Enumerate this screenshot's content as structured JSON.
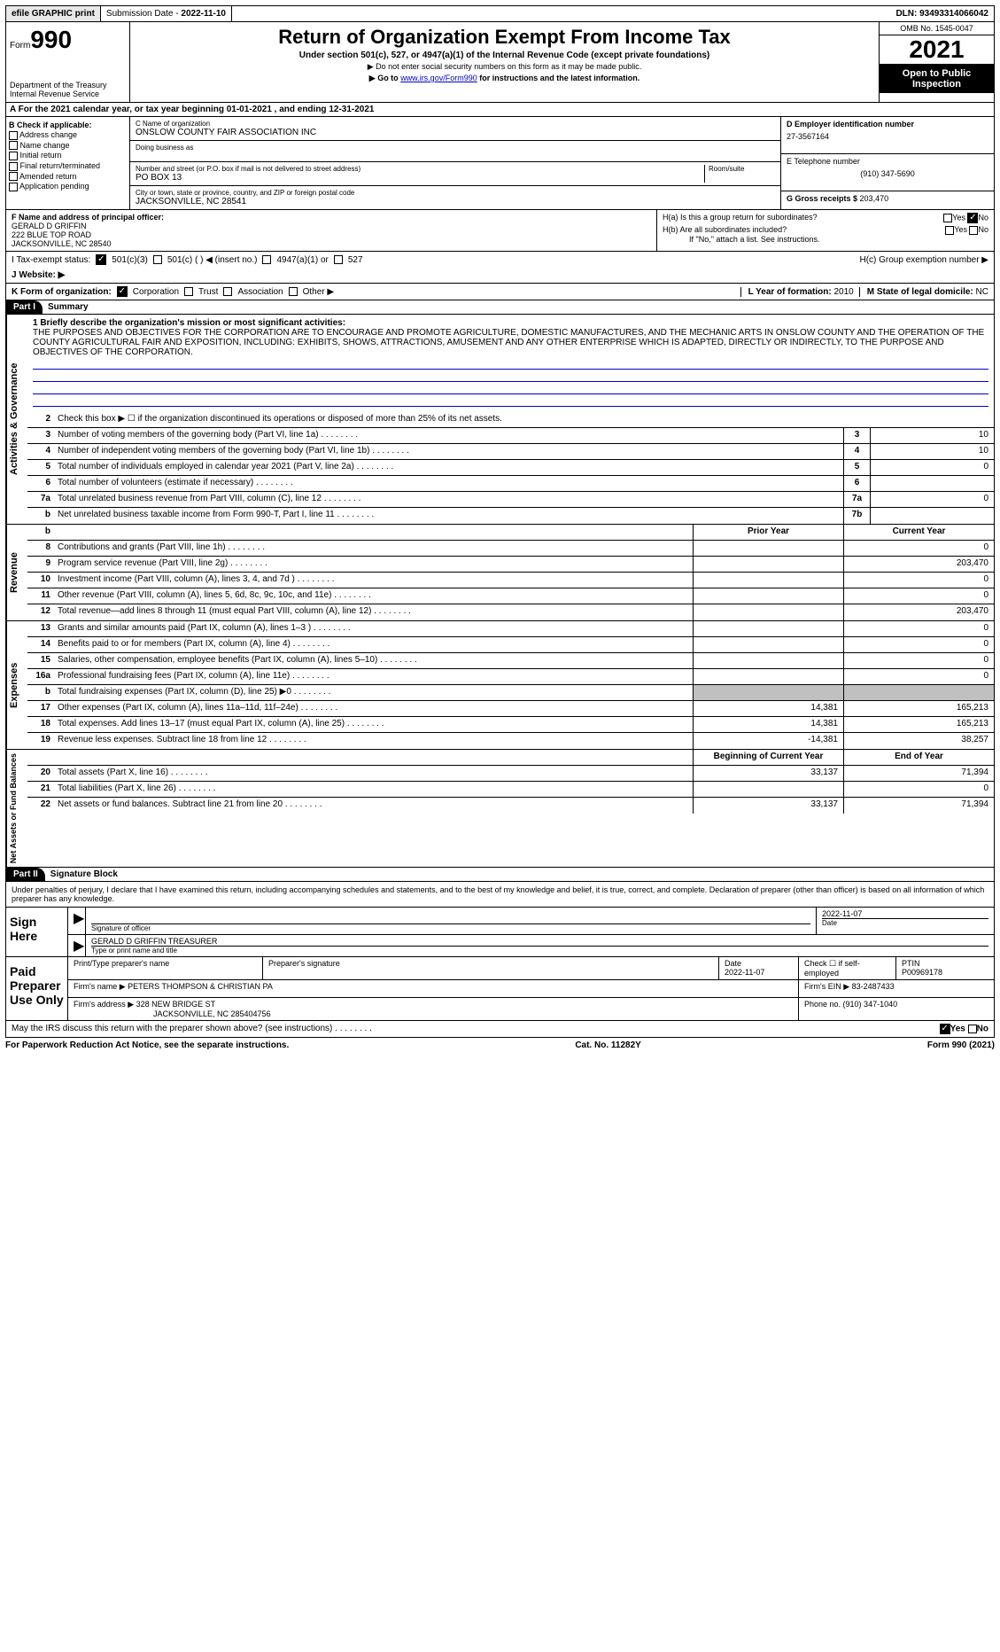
{
  "topbar": {
    "efile": "efile GRAPHIC print",
    "subdate_label": "Submission Date - ",
    "subdate": "2022-11-10",
    "dln_label": "DLN: ",
    "dln": "93493314066042"
  },
  "header": {
    "form_label": "Form",
    "form_num": "990",
    "dept": "Department of the Treasury",
    "irs": "Internal Revenue Service",
    "title": "Return of Organization Exempt From Income Tax",
    "sub": "Under section 501(c), 527, or 4947(a)(1) of the Internal Revenue Code (except private foundations)",
    "note1": "▶ Do not enter social security numbers on this form as it may be made public.",
    "note2_pre": "▶ Go to ",
    "note2_link": "www.irs.gov/Form990",
    "note2_post": " for instructions and the latest information.",
    "omb": "OMB No. 1545-0047",
    "year": "2021",
    "open": "Open to Public Inspection"
  },
  "section_a": "A For the 2021 calendar year, or tax year beginning 01-01-2021     , and ending 12-31-2021",
  "col_b": {
    "title": "B Check if applicable:",
    "items": [
      "Address change",
      "Name change",
      "Initial return",
      "Final return/terminated",
      "Amended return",
      "Application pending"
    ]
  },
  "col_c": {
    "name_label": "C Name of organization",
    "name": "ONSLOW COUNTY FAIR ASSOCIATION INC",
    "dba_label": "Doing business as",
    "addr_label": "Number and street (or P.O. box if mail is not delivered to street address)",
    "room_label": "Room/suite",
    "addr": "PO BOX 13",
    "city_label": "City or town, state or province, country, and ZIP or foreign postal code",
    "city": "JACKSONVILLE, NC  28541"
  },
  "col_d": {
    "ein_label": "D Employer identification number",
    "ein": "27-3567164",
    "phone_label": "E Telephone number",
    "phone": "(910) 347-5690",
    "gross_label": "G Gross receipts $ ",
    "gross": "203,470"
  },
  "section_f": {
    "label": "F  Name and address of principal officer:",
    "name": "GERALD D GRIFFIN",
    "addr1": "222 BLUE TOP ROAD",
    "addr2": "JACKSONVILLE, NC  28540"
  },
  "section_h": {
    "ha": "H(a)  Is this a group return for subordinates?",
    "hb": "H(b)  Are all subordinates included?",
    "hb_note": "If \"No,\" attach a list. See instructions.",
    "hc": "H(c)  Group exemption number ▶",
    "yes": "Yes",
    "no": "No"
  },
  "section_i": {
    "label": "I   Tax-exempt status:",
    "opt1": "501(c)(3)",
    "opt2": "501(c) (   ) ◀ (insert no.)",
    "opt3": "4947(a)(1) or",
    "opt4": "527"
  },
  "section_j": {
    "label": "J   Website: ▶"
  },
  "section_k": {
    "label": "K Form of organization:",
    "opts": [
      "Corporation",
      "Trust",
      "Association",
      "Other ▶"
    ]
  },
  "section_l": {
    "label": "L Year of formation: ",
    "val": "2010"
  },
  "section_m": {
    "label": "M State of legal domicile: ",
    "val": "NC"
  },
  "part1": {
    "header": "Part I",
    "title": "Summary",
    "line1_label": "1  Briefly describe the organization's mission or most significant activities:",
    "mission": "THE PURPOSES AND OBJECTIVES FOR THE CORPORATION ARE TO ENCOURAGE AND PROMOTE AGRICULTURE, DOMESTIC MANUFACTURES, AND THE MECHANIC ARTS IN ONSLOW COUNTY AND THE OPERATION OF THE COUNTY AGRICULTURAL FAIR AND EXPOSITION, INCLUDING: EXHIBITS, SHOWS, ATTRACTIONS, AMUSEMENT AND ANY OTHER ENTERPRISE WHICH IS ADAPTED, DIRECTLY OR INDIRECTLY, TO THE PURPOSE AND OBJECTIVES OF THE CORPORATION.",
    "line2": "Check this box ▶ ☐  if the organization discontinued its operations or disposed of more than 25% of its net assets.",
    "lines_ag": [
      {
        "n": "3",
        "t": "Number of voting members of the governing body (Part VI, line 1a)",
        "b": "3",
        "v": "10"
      },
      {
        "n": "4",
        "t": "Number of independent voting members of the governing body (Part VI, line 1b)",
        "b": "4",
        "v": "10"
      },
      {
        "n": "5",
        "t": "Total number of individuals employed in calendar year 2021 (Part V, line 2a)",
        "b": "5",
        "v": "0"
      },
      {
        "n": "6",
        "t": "Total number of volunteers (estimate if necessary)",
        "b": "6",
        "v": ""
      },
      {
        "n": "7a",
        "t": "Total unrelated business revenue from Part VIII, column (C), line 12",
        "b": "7a",
        "v": "0"
      },
      {
        "n": "b",
        "t": "Net unrelated business taxable income from Form 990-T, Part I, line 11",
        "b": "7b",
        "v": ""
      }
    ],
    "prior_hdr": "Prior Year",
    "curr_hdr": "Current Year",
    "lines_rev": [
      {
        "n": "8",
        "t": "Contributions and grants (Part VIII, line 1h)",
        "p": "",
        "c": "0"
      },
      {
        "n": "9",
        "t": "Program service revenue (Part VIII, line 2g)",
        "p": "",
        "c": "203,470"
      },
      {
        "n": "10",
        "t": "Investment income (Part VIII, column (A), lines 3, 4, and 7d )",
        "p": "",
        "c": "0"
      },
      {
        "n": "11",
        "t": "Other revenue (Part VIII, column (A), lines 5, 6d, 8c, 9c, 10c, and 11e)",
        "p": "",
        "c": "0"
      },
      {
        "n": "12",
        "t": "Total revenue—add lines 8 through 11 (must equal Part VIII, column (A), line 12)",
        "p": "",
        "c": "203,470"
      }
    ],
    "lines_exp": [
      {
        "n": "13",
        "t": "Grants and similar amounts paid (Part IX, column (A), lines 1–3 )",
        "p": "",
        "c": "0"
      },
      {
        "n": "14",
        "t": "Benefits paid to or for members (Part IX, column (A), line 4)",
        "p": "",
        "c": "0"
      },
      {
        "n": "15",
        "t": "Salaries, other compensation, employee benefits (Part IX, column (A), lines 5–10)",
        "p": "",
        "c": "0"
      },
      {
        "n": "16a",
        "t": "Professional fundraising fees (Part IX, column (A), line 11e)",
        "p": "",
        "c": "0"
      },
      {
        "n": "b",
        "t": "Total fundraising expenses (Part IX, column (D), line 25) ▶0",
        "p": "GRAY",
        "c": "GRAY"
      },
      {
        "n": "17",
        "t": "Other expenses (Part IX, column (A), lines 11a–11d, 11f–24e)",
        "p": "14,381",
        "c": "165,213"
      },
      {
        "n": "18",
        "t": "Total expenses. Add lines 13–17 (must equal Part IX, column (A), line 25)",
        "p": "14,381",
        "c": "165,213"
      },
      {
        "n": "19",
        "t": "Revenue less expenses. Subtract line 18 from line 12",
        "p": "-14,381",
        "c": "38,257"
      }
    ],
    "beg_hdr": "Beginning of Current Year",
    "end_hdr": "End of Year",
    "lines_net": [
      {
        "n": "20",
        "t": "Total assets (Part X, line 16)",
        "p": "33,137",
        "c": "71,394"
      },
      {
        "n": "21",
        "t": "Total liabilities (Part X, line 26)",
        "p": "",
        "c": "0"
      },
      {
        "n": "22",
        "t": "Net assets or fund balances. Subtract line 21 from line 20",
        "p": "33,137",
        "c": "71,394"
      }
    ]
  },
  "sides": {
    "ag": "Activities & Governance",
    "rev": "Revenue",
    "exp": "Expenses",
    "net": "Net Assets or Fund Balances"
  },
  "part2": {
    "header": "Part II",
    "title": "Signature Block",
    "decl": "Under penalties of perjury, I declare that I have examined this return, including accompanying schedules and statements, and to the best of my knowledge and belief, it is true, correct, and complete. Declaration of preparer (other than officer) is based on all information of which preparer has any knowledge."
  },
  "sign": {
    "label": "Sign Here",
    "sig_label": "Signature of officer",
    "date": "2022-11-07",
    "date_label": "Date",
    "name": "GERALD D GRIFFIN  TREASURER",
    "name_label": "Type or print name and title"
  },
  "paid": {
    "label": "Paid Preparer Use Only",
    "h1": "Print/Type preparer's name",
    "h2": "Preparer's signature",
    "h3": "Date",
    "h3v": "2022-11-07",
    "h4": "Check ☐ if self-employed",
    "h5": "PTIN",
    "h5v": "P00969178",
    "firm_label": "Firm's name    ▶ ",
    "firm": "PETERS THOMPSON & CHRISTIAN PA",
    "ein_label": "Firm's EIN ▶ ",
    "ein": "83-2487433",
    "addr_label": "Firm's address ▶ ",
    "addr1": "328 NEW BRIDGE ST",
    "addr2": "JACKSONVILLE, NC 285404756",
    "phone_label": "Phone no. ",
    "phone": "(910) 347-1040"
  },
  "discuss": {
    "text": "May the IRS discuss this return with the preparer shown above? (see instructions)",
    "yes": "Yes",
    "no": "No"
  },
  "footer": {
    "left": "For Paperwork Reduction Act Notice, see the separate instructions.",
    "mid": "Cat. No. 11282Y",
    "right": "Form 990 (2021)"
  }
}
